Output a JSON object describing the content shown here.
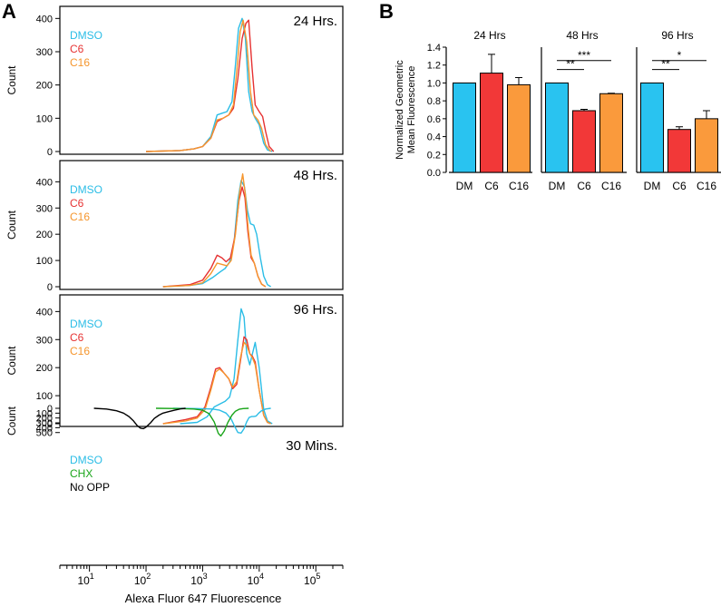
{
  "colors": {
    "dmso": "#2bbde6",
    "c6": "#e63232",
    "c16": "#f5962e",
    "chx": "#1aa51a",
    "noopp": "#000000",
    "bar_dmso": "#29c3f0",
    "bar_c6": "#f23838",
    "bar_c16": "#fa9a3c"
  },
  "panel_a": {
    "letter": "A",
    "y_axis_label": "Count",
    "x_axis_label": "Alexa Fluor 647 Fluorescence",
    "x_tick_labels": [
      {
        "base": "10",
        "exp": "1"
      },
      {
        "base": "10",
        "exp": "2"
      },
      {
        "base": "10",
        "exp": "3"
      },
      {
        "base": "10",
        "exp": "4"
      },
      {
        "base": "10",
        "exp": "5"
      }
    ]
  },
  "panel_b": {
    "letter": "B",
    "y_axis_label_line1": "Normalized Geometric",
    "y_axis_label_line2": "Mean Fluorescence"
  },
  "chart_data": [
    {
      "type": "line",
      "title": "24 Hrs.",
      "xlabel": "Alexa Fluor 647 Fluorescence",
      "ylabel": "Count",
      "x_scale": "log",
      "xlim": [
        3,
        300000
      ],
      "ylim": [
        0,
        420
      ],
      "yticks": [
        0,
        100,
        200,
        300,
        400
      ],
      "legend": [
        "DMSO",
        "C6",
        "C16"
      ],
      "series": [
        {
          "name": "DMSO",
          "color_key": "dmso",
          "x": [
            100,
            400,
            700,
            1000,
            1400,
            1800,
            2200,
            2700,
            3300,
            3800,
            4300,
            5000,
            5700,
            6500,
            7500,
            8500,
            10000,
            12000,
            14000,
            17000
          ],
          "y": [
            0,
            3,
            8,
            15,
            45,
            110,
            115,
            120,
            150,
            260,
            370,
            400,
            340,
            180,
            120,
            100,
            80,
            25,
            5,
            0
          ]
        },
        {
          "name": "C6",
          "color_key": "c6",
          "x": [
            100,
            400,
            700,
            1000,
            1400,
            1800,
            2300,
            2900,
            3500,
            4200,
            5000,
            5800,
            6500,
            7500,
            8500,
            10000,
            11500,
            13000,
            15000,
            18000
          ],
          "y": [
            0,
            3,
            8,
            15,
            40,
            90,
            100,
            110,
            130,
            220,
            340,
            385,
            395,
            250,
            140,
            120,
            105,
            60,
            15,
            0
          ]
        },
        {
          "name": "C16",
          "color_key": "c16",
          "x": [
            100,
            400,
            700,
            1000,
            1400,
            1800,
            2300,
            2900,
            3500,
            4000,
            4600,
            5200,
            6000,
            7000,
            8000,
            9500,
            11000,
            13000,
            16000
          ],
          "y": [
            0,
            3,
            8,
            15,
            40,
            95,
            100,
            110,
            140,
            240,
            360,
            395,
            330,
            180,
            110,
            95,
            70,
            20,
            0
          ]
        }
      ]
    },
    {
      "type": "line",
      "title": "48 Hrs.",
      "xlabel": "Alexa Fluor 647 Fluorescence",
      "ylabel": "Count",
      "x_scale": "log",
      "xlim": [
        3,
        300000
      ],
      "ylim": [
        0,
        460
      ],
      "yticks": [
        0,
        100,
        200,
        300,
        400
      ],
      "legend": [
        "DMSO",
        "C6",
        "C16"
      ],
      "series": [
        {
          "name": "DMSO",
          "color_key": "dmso",
          "x": [
            200,
            600,
            1000,
            1500,
            2000,
            2500,
            3000,
            3600,
            4200,
            4800,
            5500,
            6200,
            7000,
            8000,
            9000,
            10500,
            12000,
            14000,
            16000
          ],
          "y": [
            0,
            5,
            12,
            35,
            55,
            70,
            95,
            170,
            330,
            405,
            380,
            290,
            240,
            235,
            200,
            110,
            40,
            8,
            0
          ]
        },
        {
          "name": "C6",
          "color_key": "c6",
          "x": [
            200,
            600,
            1000,
            1400,
            1800,
            2200,
            2600,
            3100,
            3700,
            4400,
            5000,
            5600,
            6300,
            7200,
            8200,
            9500,
            11000,
            13000
          ],
          "y": [
            0,
            8,
            25,
            70,
            120,
            110,
            95,
            110,
            190,
            330,
            380,
            340,
            210,
            110,
            90,
            40,
            10,
            0
          ]
        },
        {
          "name": "C16",
          "color_key": "c16",
          "x": [
            200,
            600,
            1000,
            1400,
            1800,
            2200,
            2700,
            3200,
            3800,
            4500,
            5100,
            5700,
            6400,
            7200,
            8200,
            9500,
            11000,
            13000
          ],
          "y": [
            0,
            5,
            15,
            50,
            90,
            85,
            80,
            100,
            200,
            360,
            430,
            350,
            220,
            120,
            90,
            40,
            10,
            0
          ]
        }
      ]
    },
    {
      "type": "line",
      "title": "96 Hrs.",
      "xlabel": "Alexa Fluor 647 Fluorescence",
      "ylabel": "Count",
      "x_scale": "log",
      "xlim": [
        3,
        300000
      ],
      "ylim": [
        0,
        440
      ],
      "yticks": [
        0,
        100,
        200,
        300,
        400
      ],
      "legend": [
        "DMSO",
        "C6",
        "C16"
      ],
      "series": [
        {
          "name": "DMSO",
          "color_key": "dmso",
          "x": [
            400,
            800,
            1200,
            1600,
            2000,
            2500,
            3000,
            3600,
            4200,
            4800,
            5400,
            6000,
            6800,
            7600,
            8500,
            10000,
            12000,
            14000,
            17000
          ],
          "y": [
            0,
            5,
            25,
            60,
            70,
            80,
            95,
            160,
            300,
            410,
            380,
            250,
            210,
            250,
            290,
            200,
            50,
            10,
            0
          ]
        },
        {
          "name": "C6",
          "color_key": "c6",
          "x": [
            200,
            500,
            800,
            1100,
            1400,
            1700,
            2000,
            2400,
            2900,
            3400,
            4000,
            4700,
            5400,
            6000,
            6800,
            7600,
            8500,
            10000,
            12000,
            14000,
            16000
          ],
          "y": [
            0,
            15,
            25,
            60,
            130,
            195,
            200,
            180,
            160,
            125,
            140,
            230,
            310,
            300,
            250,
            240,
            220,
            120,
            30,
            5,
            0
          ]
        },
        {
          "name": "C16",
          "color_key": "c16",
          "x": [
            200,
            500,
            800,
            1100,
            1400,
            1700,
            2000,
            2400,
            2900,
            3400,
            4000,
            4700,
            5400,
            6000,
            6800,
            7600,
            8500,
            10000,
            12000,
            14000,
            16000
          ],
          "y": [
            0,
            10,
            20,
            50,
            120,
            185,
            195,
            180,
            160,
            130,
            150,
            240,
            290,
            280,
            250,
            235,
            210,
            120,
            30,
            5,
            0
          ]
        }
      ]
    },
    {
      "type": "line",
      "title": "30 Mins.",
      "xlabel": "Alexa Fluor 647 Fluorescence",
      "ylabel": "Count",
      "x_scale": "log",
      "xlim": [
        3,
        300000
      ],
      "ylim": [
        0,
        580
      ],
      "yticks": [
        0,
        100,
        200,
        300,
        400,
        500
      ],
      "legend": [
        "DMSO",
        "CHX",
        "No OPP"
      ],
      "series": [
        {
          "name": "DMSO",
          "color_key": "dmso",
          "x": [
            300,
            800,
            1500,
            2000,
            2600,
            3200,
            3700,
            4200,
            4800,
            5400,
            6000,
            6600,
            7300,
            8000,
            8800,
            9800,
            11000,
            13000,
            16000
          ],
          "y": [
            0,
            5,
            15,
            40,
            100,
            220,
            380,
            500,
            510,
            420,
            280,
            190,
            170,
            170,
            160,
            100,
            50,
            15,
            0
          ]
        },
        {
          "name": "CHX",
          "color_key": "chx",
          "x": [
            150,
            400,
            700,
            1000,
            1300,
            1600,
            1900,
            2100,
            2400,
            2800,
            3300,
            3800,
            4400,
            5200,
            6500
          ],
          "y": [
            0,
            5,
            15,
            40,
            110,
            280,
            520,
            570,
            470,
            290,
            140,
            60,
            20,
            5,
            0
          ]
        },
        {
          "name": "No OPP",
          "color_key": "noopp",
          "x": [
            12,
            20,
            30,
            40,
            50,
            60,
            70,
            80,
            90,
            100,
            120,
            140,
            170,
            200,
            250,
            320,
            420,
            500
          ],
          "y": [
            0,
            15,
            50,
            100,
            170,
            260,
            360,
            410,
            420,
            390,
            300,
            210,
            140,
            100,
            70,
            40,
            10,
            0
          ]
        }
      ]
    },
    {
      "type": "bar",
      "title": "24 Hrs",
      "ylabel": "Normalized Geometric Mean Fluorescence",
      "ylim": [
        0,
        1.4
      ],
      "yticks": [
        0,
        0.2,
        0.4,
        0.6,
        0.8,
        1.0,
        1.2,
        1.4
      ],
      "ytick_labels": [
        "0.0",
        "0.2",
        "0.4",
        "0.6",
        "0.8",
        "1.0",
        "1.2",
        "1.4"
      ],
      "categories": [
        "DM",
        "C6",
        "C16"
      ],
      "values": [
        1.0,
        1.11,
        0.98
      ],
      "errors": [
        0.0,
        0.21,
        0.08
      ],
      "significance": []
    },
    {
      "type": "bar",
      "title": "48 Hrs",
      "ylabel": "Normalized Geometric Mean Fluorescence",
      "ylim": [
        0,
        1.4
      ],
      "categories": [
        "DM",
        "C6",
        "C16"
      ],
      "values": [
        1.0,
        0.69,
        0.88
      ],
      "errors": [
        0.0,
        0.015,
        0.005
      ],
      "significance": [
        {
          "from": 0,
          "to": 1,
          "label": "**",
          "y": 1.15
        },
        {
          "from": 0,
          "to": 2,
          "label": "***",
          "y": 1.25
        }
      ]
    },
    {
      "type": "bar",
      "title": "96 Hrs",
      "ylabel": "Normalized Geometric Mean Fluorescence",
      "ylim": [
        0,
        1.4
      ],
      "categories": [
        "DM",
        "C6",
        "C16"
      ],
      "values": [
        1.0,
        0.48,
        0.6
      ],
      "errors": [
        0.0,
        0.03,
        0.09
      ],
      "significance": [
        {
          "from": 0,
          "to": 1,
          "label": "**",
          "y": 1.15
        },
        {
          "from": 0,
          "to": 2,
          "label": "*",
          "y": 1.25
        }
      ]
    }
  ]
}
